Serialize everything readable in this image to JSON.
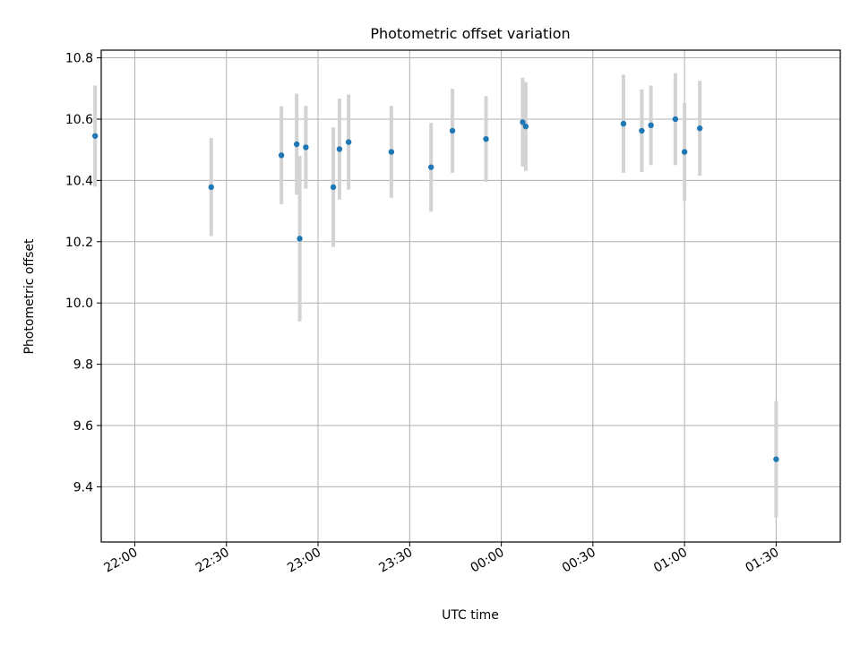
{
  "chart_data": {
    "type": "scatter",
    "title": "Photometric offset variation",
    "xlabel": "UTC time",
    "ylabel": "Photometric offset",
    "x_axis_type": "time",
    "x_range": [
      "21:49",
      "01:51"
    ],
    "ylim": [
      9.22,
      10.825
    ],
    "x_ticks": [
      "22:00",
      "22:30",
      "23:00",
      "23:30",
      "00:00",
      "00:30",
      "01:00",
      "01:30"
    ],
    "y_ticks": [
      "9.4",
      "9.6",
      "9.8",
      "10.0",
      "10.2",
      "10.4",
      "10.6",
      "10.8"
    ],
    "grid": true,
    "colors": {
      "points": "#1f77b4",
      "errorbars": "#d3d3d3",
      "grid": "#b0b0b0"
    },
    "series": [
      {
        "points": [
          {
            "x": "21:47",
            "y": 10.545,
            "yerr": 0.165
          },
          {
            "x": "22:25",
            "y": 10.378,
            "yerr": 0.16
          },
          {
            "x": "22:48",
            "y": 10.482,
            "yerr": 0.16
          },
          {
            "x": "22:53",
            "y": 10.518,
            "yerr": 0.165
          },
          {
            "x": "22:54",
            "y": 10.21,
            "yerr": 0.27
          },
          {
            "x": "22:56",
            "y": 10.508,
            "yerr": 0.135
          },
          {
            "x": "23:05",
            "y": 10.378,
            "yerr": 0.195
          },
          {
            "x": "23:07",
            "y": 10.502,
            "yerr": 0.165
          },
          {
            "x": "23:10",
            "y": 10.525,
            "yerr": 0.155
          },
          {
            "x": "23:24",
            "y": 10.493,
            "yerr": 0.15
          },
          {
            "x": "23:37",
            "y": 10.443,
            "yerr": 0.145
          },
          {
            "x": "23:44",
            "y": 10.562,
            "yerr": 0.137
          },
          {
            "x": "23:55",
            "y": 10.535,
            "yerr": 0.14
          },
          {
            "x": "00:07",
            "y": 10.59,
            "yerr": 0.145
          },
          {
            "x": "00:08",
            "y": 10.576,
            "yerr": 0.145
          },
          {
            "x": "00:40",
            "y": 10.585,
            "yerr": 0.16
          },
          {
            "x": "00:46",
            "y": 10.562,
            "yerr": 0.135
          },
          {
            "x": "00:49",
            "y": 10.58,
            "yerr": 0.13
          },
          {
            "x": "00:57",
            "y": 10.6,
            "yerr": 0.15
          },
          {
            "x": "01:00",
            "y": 10.493,
            "yerr": 0.16
          },
          {
            "x": "01:05",
            "y": 10.57,
            "yerr": 0.155
          },
          {
            "x": "01:30",
            "y": 9.49,
            "yerr": 0.19
          }
        ]
      }
    ]
  }
}
